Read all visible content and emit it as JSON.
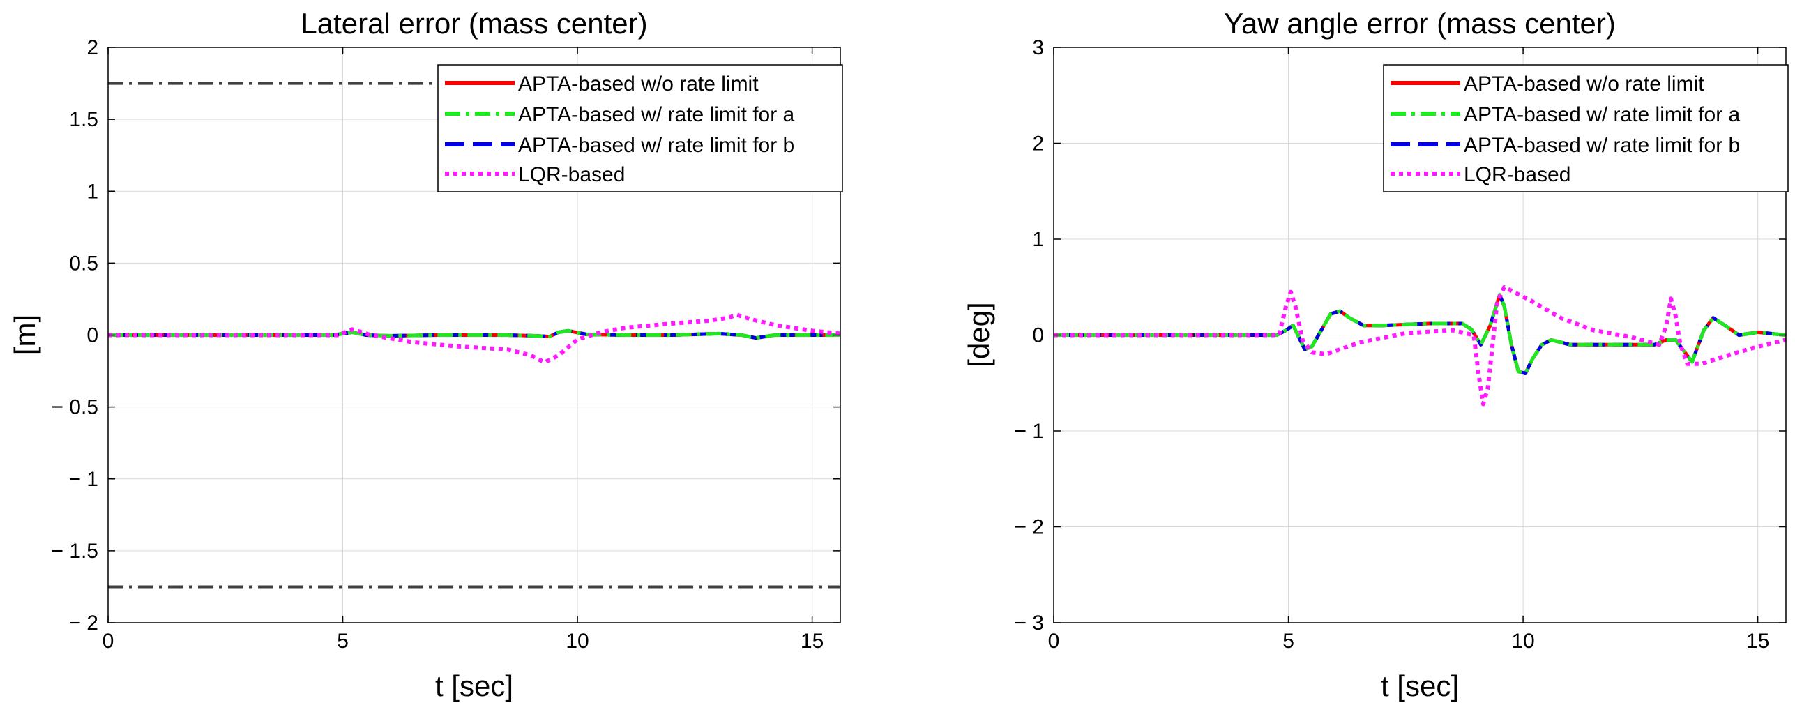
{
  "colors": {
    "apta_no_limit": "#ff0000",
    "apta_limit_a": "#1ee81e",
    "apta_limit_b": "#0000e0",
    "lqr": "#ff1aff",
    "bounds": "#404040",
    "grid": "#d9d9d9"
  },
  "chart_data": [
    {
      "type": "line",
      "title": "Lateral error (mass center)",
      "xlabel": "t [sec]",
      "ylabel": "[m]",
      "xlim": [
        0,
        15.6
      ],
      "ylim": [
        -2,
        2
      ],
      "xticks": [
        0,
        5,
        10,
        15
      ],
      "xtick_labels": [
        "0",
        "5",
        "10",
        "15"
      ],
      "yticks": [
        2,
        1.5,
        1,
        0.5,
        0,
        -0.5,
        -1,
        -1.5,
        -2
      ],
      "ytick_labels": [
        "2",
        "1.5",
        "1",
        "0.5",
        "0",
        "− 0.5",
        "− 1",
        "− 1.5",
        "− 2"
      ],
      "grid": true,
      "legend_position": "top-right",
      "reference_lines": [
        1.75,
        -1.75
      ],
      "series": [
        {
          "name": "APTA-based w/o rate limit",
          "x": [
            0,
            4.8,
            5.0,
            5.2,
            5.5,
            6.0,
            7.0,
            8.5,
            9.1,
            9.4,
            9.6,
            9.8,
            10.2,
            11.0,
            12.0,
            13.0,
            13.5,
            13.8,
            14.2,
            15.6
          ],
          "values": [
            0,
            0,
            0.01,
            0.02,
            0.0,
            -0.005,
            0,
            0,
            -0.005,
            -0.01,
            0.02,
            0.03,
            0.005,
            0,
            0,
            0.01,
            0.0,
            -0.02,
            0,
            0
          ]
        },
        {
          "name": "APTA-based w/ rate limit for a",
          "x": [
            0,
            4.8,
            5.0,
            5.2,
            5.5,
            6.0,
            7.0,
            8.5,
            9.1,
            9.4,
            9.6,
            9.8,
            10.2,
            11.0,
            12.0,
            13.0,
            13.5,
            13.8,
            14.2,
            15.6
          ],
          "values": [
            0,
            0,
            0.01,
            0.02,
            0.0,
            -0.005,
            0,
            0,
            -0.005,
            -0.01,
            0.02,
            0.03,
            0.005,
            0,
            0,
            0.01,
            0.0,
            -0.02,
            0,
            0
          ]
        },
        {
          "name": "APTA-based w/ rate limit for b",
          "x": [
            0,
            4.8,
            5.0,
            5.2,
            5.5,
            6.0,
            7.0,
            8.5,
            9.1,
            9.4,
            9.6,
            9.8,
            10.2,
            11.0,
            12.0,
            13.0,
            13.5,
            13.8,
            14.2,
            15.6
          ],
          "values": [
            0,
            0,
            0.01,
            0.02,
            0.0,
            -0.005,
            0,
            0,
            -0.005,
            -0.01,
            0.02,
            0.03,
            0.005,
            0,
            0,
            0.01,
            0.0,
            -0.02,
            0,
            0
          ]
        },
        {
          "name": "LQR-based",
          "x": [
            0,
            4.9,
            5.2,
            5.6,
            6.5,
            7.5,
            8.5,
            9.0,
            9.3,
            9.6,
            10.0,
            10.5,
            11.0,
            12.0,
            12.8,
            13.2,
            13.4,
            13.7,
            14.2,
            15.0,
            15.6
          ],
          "values": [
            0,
            0,
            0.04,
            0.0,
            -0.05,
            -0.08,
            -0.1,
            -0.14,
            -0.19,
            -0.14,
            -0.03,
            0.02,
            0.05,
            0.08,
            0.1,
            0.12,
            0.14,
            0.11,
            0.07,
            0.03,
            0.01
          ]
        }
      ]
    },
    {
      "type": "line",
      "title": "Yaw angle error (mass center)",
      "xlabel": "t [sec]",
      "ylabel": "[deg]",
      "xlim": [
        0,
        15.6
      ],
      "ylim": [
        -3,
        3
      ],
      "xticks": [
        0,
        5,
        10,
        15
      ],
      "xtick_labels": [
        "0",
        "5",
        "10",
        "15"
      ],
      "yticks": [
        3,
        2,
        1,
        0,
        -1,
        -2,
        -3
      ],
      "ytick_labels": [
        "3",
        "2",
        "1",
        "0",
        "− 1",
        "− 2",
        "− 3"
      ],
      "grid": true,
      "legend_position": "top-right",
      "reference_lines": [],
      "series": [
        {
          "name": "APTA-based w/o rate limit",
          "x": [
            0,
            4.75,
            4.95,
            5.1,
            5.25,
            5.35,
            5.5,
            5.7,
            5.9,
            6.1,
            6.3,
            6.6,
            7.0,
            8.0,
            8.7,
            8.9,
            9.1,
            9.3,
            9.5,
            9.6,
            9.75,
            9.9,
            10.05,
            10.2,
            10.4,
            10.6,
            11.0,
            12.0,
            12.8,
            13.05,
            13.25,
            13.4,
            13.6,
            13.85,
            14.05,
            14.3,
            14.6,
            15.0,
            15.6
          ],
          "values": [
            0,
            0,
            0.05,
            0.1,
            -0.05,
            -0.15,
            -0.12,
            0.05,
            0.22,
            0.25,
            0.18,
            0.1,
            0.1,
            0.12,
            0.12,
            0.06,
            -0.1,
            0.1,
            0.42,
            0.3,
            -0.1,
            -0.38,
            -0.4,
            -0.25,
            -0.1,
            -0.05,
            -0.1,
            -0.1,
            -0.1,
            -0.05,
            -0.05,
            -0.15,
            -0.28,
            0.05,
            0.18,
            0.1,
            0.0,
            0.03,
            0.0
          ]
        },
        {
          "name": "APTA-based w/ rate limit for a",
          "x": [
            0,
            4.75,
            4.95,
            5.1,
            5.25,
            5.35,
            5.5,
            5.7,
            5.9,
            6.1,
            6.3,
            6.6,
            7.0,
            8.0,
            8.7,
            8.9,
            9.1,
            9.3,
            9.5,
            9.6,
            9.75,
            9.9,
            10.05,
            10.2,
            10.4,
            10.6,
            11.0,
            12.0,
            12.8,
            13.05,
            13.25,
            13.4,
            13.6,
            13.85,
            14.05,
            14.3,
            14.6,
            15.0,
            15.6
          ],
          "values": [
            0,
            0,
            0.05,
            0.1,
            -0.05,
            -0.15,
            -0.12,
            0.05,
            0.22,
            0.25,
            0.18,
            0.1,
            0.1,
            0.12,
            0.12,
            0.06,
            -0.1,
            0.1,
            0.42,
            0.3,
            -0.1,
            -0.38,
            -0.4,
            -0.25,
            -0.1,
            -0.05,
            -0.1,
            -0.1,
            -0.1,
            -0.05,
            -0.05,
            -0.15,
            -0.28,
            0.05,
            0.18,
            0.1,
            0.0,
            0.03,
            0.0
          ]
        },
        {
          "name": "APTA-based w/ rate limit for b",
          "x": [
            0,
            4.75,
            4.95,
            5.1,
            5.25,
            5.35,
            5.5,
            5.7,
            5.9,
            6.1,
            6.3,
            6.6,
            7.0,
            8.0,
            8.7,
            8.9,
            9.1,
            9.3,
            9.5,
            9.6,
            9.75,
            9.9,
            10.05,
            10.2,
            10.4,
            10.6,
            11.0,
            12.0,
            12.8,
            13.05,
            13.25,
            13.4,
            13.6,
            13.85,
            14.05,
            14.3,
            14.6,
            15.0,
            15.6
          ],
          "values": [
            0,
            0,
            0.05,
            0.1,
            -0.05,
            -0.15,
            -0.12,
            0.05,
            0.22,
            0.25,
            0.18,
            0.1,
            0.1,
            0.12,
            0.12,
            0.06,
            -0.1,
            0.1,
            0.42,
            0.3,
            -0.1,
            -0.38,
            -0.4,
            -0.25,
            -0.1,
            -0.05,
            -0.1,
            -0.1,
            -0.1,
            -0.05,
            -0.05,
            -0.15,
            -0.28,
            0.05,
            0.18,
            0.1,
            0.0,
            0.03,
            0.0
          ]
        },
        {
          "name": "LQR-based",
          "x": [
            0,
            4.8,
            4.95,
            5.05,
            5.15,
            5.3,
            5.5,
            5.8,
            6.5,
            7.5,
            8.5,
            8.95,
            9.05,
            9.15,
            9.25,
            9.35,
            9.45,
            9.6,
            9.8,
            10.2,
            10.8,
            11.5,
            12.3,
            12.9,
            13.05,
            13.15,
            13.25,
            13.35,
            13.5,
            13.8,
            14.3,
            15.0,
            15.6
          ],
          "values": [
            0,
            0,
            0.3,
            0.45,
            0.3,
            -0.05,
            -0.18,
            -0.2,
            -0.08,
            0.02,
            0.05,
            0.0,
            -0.4,
            -0.72,
            -0.55,
            -0.1,
            0.35,
            0.5,
            0.45,
            0.35,
            0.18,
            0.05,
            -0.02,
            -0.1,
            0.1,
            0.38,
            0.2,
            -0.1,
            -0.3,
            -0.3,
            -0.22,
            -0.12,
            -0.05
          ]
        }
      ]
    }
  ]
}
